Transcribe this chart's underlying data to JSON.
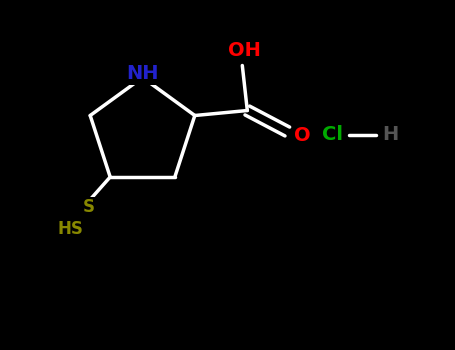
{
  "background_color": "#000000",
  "bond_color": "#ffffff",
  "NH_color": "#2222cc",
  "OH_color": "#ff0000",
  "O_color": "#ff0000",
  "SH_color": "#888800",
  "S_color": "#888800",
  "Cl_color": "#00aa00",
  "H_hcl_color": "#555555",
  "bond_width": 2.5,
  "NH_label": "NH",
  "OH_label": "OH",
  "O_label": "O",
  "SH_label": "HS",
  "Cl_label": "Cl",
  "H_label": "H",
  "figsize": [
    4.55,
    3.5
  ],
  "dpi": 100,
  "xlim": [
    0,
    9.1
  ],
  "ylim": [
    0,
    7.0
  ]
}
